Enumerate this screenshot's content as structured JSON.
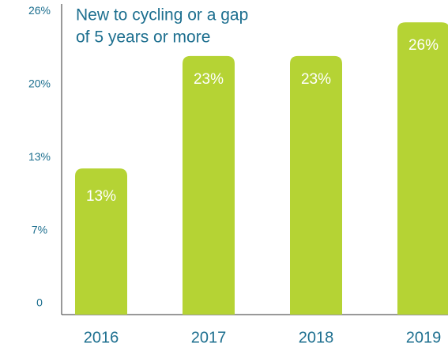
{
  "chart_data": {
    "type": "bar",
    "title": [
      "New to cycling or a gap",
      "of 5 years or more"
    ],
    "categories": [
      "2016",
      "2017",
      "2018",
      "2019"
    ],
    "values": [
      13,
      23,
      23,
      26
    ],
    "value_labels": [
      "13%",
      "23%",
      "23%",
      "26%"
    ],
    "color": "#b5d334",
    "ylim": [
      0,
      27
    ],
    "yticks": [
      0,
      {
        "value": 6.5,
        "label": "7%"
      },
      {
        "value": 13,
        "label": "13%"
      },
      {
        "value": 19.5,
        "label": "20%"
      },
      {
        "value": 26,
        "label": "26%"
      }
    ],
    "grid": false
  }
}
